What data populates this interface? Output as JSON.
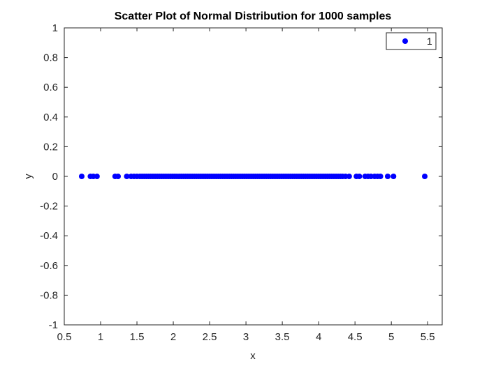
{
  "chart_data": {
    "type": "scatter",
    "title": "Scatter Plot of Normal Distribution for 1000 samples",
    "xlabel": "x",
    "ylabel": "y",
    "xlim": [
      0.5,
      5.7
    ],
    "ylim": [
      -1,
      1
    ],
    "xticks": [
      0.5,
      1,
      1.5,
      2,
      2.5,
      3,
      3.5,
      4,
      4.5,
      5,
      5.5
    ],
    "xtick_labels": [
      "0.5",
      "1",
      "1.5",
      "2",
      "2.5",
      "3",
      "3.5",
      "4",
      "4.5",
      "5",
      "5.5"
    ],
    "yticks": [
      1,
      0.8,
      0.6,
      0.4,
      0.2,
      0,
      -0.2,
      -0.4,
      -0.6,
      -0.8,
      -1
    ],
    "ytick_labels": [
      "1",
      "0.8",
      "0.6",
      "0.4",
      "0.2",
      "0",
      "-0.2",
      "-0.4",
      "-0.6",
      "-0.8",
      "-1"
    ],
    "grid": false,
    "legend_position": "top-right",
    "series": [
      {
        "name": "1",
        "color": "#0000ff",
        "marker": "filled-circle",
        "y_constant": 0,
        "x": [
          0.74,
          0.86,
          0.9,
          0.95,
          1.2,
          1.24,
          1.36,
          1.42,
          1.46,
          1.5,
          1.54,
          1.57,
          1.6,
          1.63,
          1.66,
          1.69,
          1.72,
          1.75,
          1.78,
          1.81,
          1.84,
          1.87,
          1.9,
          1.93,
          1.96,
          1.99,
          2.02,
          2.05,
          2.08,
          2.11,
          2.14,
          2.17,
          2.2,
          2.23,
          2.26,
          2.29,
          2.32,
          2.35,
          2.38,
          2.41,
          2.44,
          2.47,
          2.5,
          2.53,
          2.56,
          2.59,
          2.62,
          2.65,
          2.68,
          2.71,
          2.74,
          2.77,
          2.8,
          2.83,
          2.86,
          2.89,
          2.92,
          2.95,
          2.98,
          3.01,
          3.04,
          3.07,
          3.1,
          3.13,
          3.16,
          3.19,
          3.22,
          3.25,
          3.28,
          3.31,
          3.34,
          3.37,
          3.4,
          3.43,
          3.46,
          3.49,
          3.52,
          3.55,
          3.58,
          3.61,
          3.64,
          3.67,
          3.7,
          3.73,
          3.76,
          3.79,
          3.82,
          3.85,
          3.88,
          3.91,
          3.94,
          3.97,
          4.0,
          4.03,
          4.06,
          4.09,
          4.12,
          4.15,
          4.18,
          4.21,
          4.24,
          4.27,
          4.3,
          4.33,
          4.37,
          4.42,
          4.52,
          4.56,
          4.64,
          4.68,
          4.72,
          4.77,
          4.81,
          4.85,
          4.95,
          5.03,
          5.46
        ]
      }
    ]
  }
}
